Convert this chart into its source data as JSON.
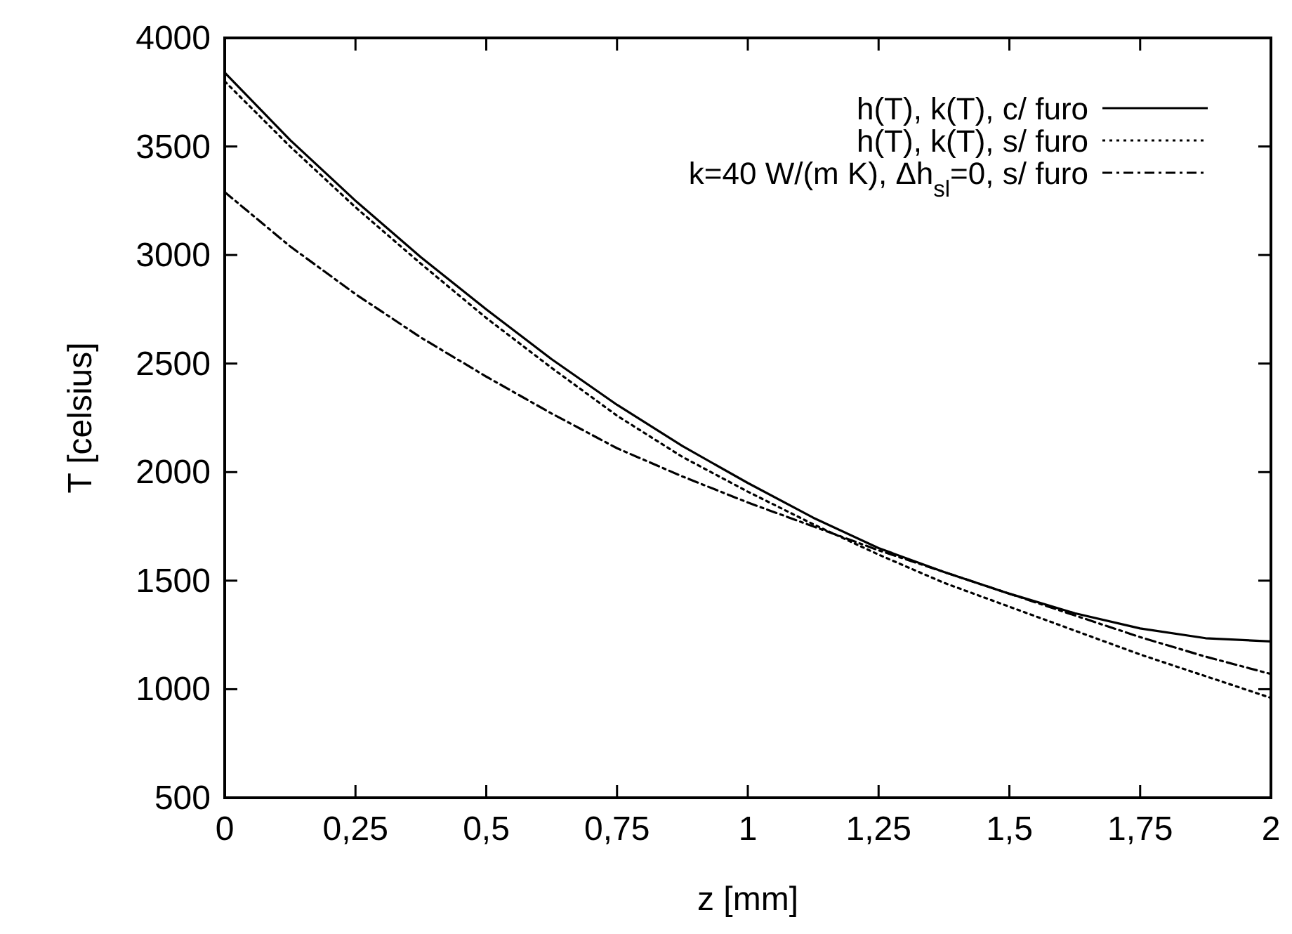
{
  "chart_data": {
    "type": "line",
    "xlabel": "z [mm]",
    "ylabel": "T [celsius]",
    "x": [
      0,
      0.125,
      0.25,
      0.375,
      0.5,
      0.625,
      0.75,
      0.875,
      1,
      1.125,
      1.25,
      1.375,
      1.5,
      1.625,
      1.75,
      1.875,
      2
    ],
    "series": [
      {
        "name": "h(T), k(T), c/ furo",
        "color": "#000000",
        "line_style": "solid",
        "values": [
          3840,
          3530,
          3250,
          2990,
          2750,
          2520,
          2310,
          2120,
          1950,
          1790,
          1650,
          1540,
          1440,
          1350,
          1280,
          1235,
          1220
        ]
      },
      {
        "name": "h(T), k(T), s/ furo",
        "color": "#000000",
        "line_style": "dotted",
        "values": [
          3800,
          3500,
          3220,
          2960,
          2710,
          2480,
          2260,
          2070,
          1910,
          1760,
          1620,
          1490,
          1380,
          1270,
          1160,
          1060,
          960
        ]
      },
      {
        "name": "k=40 W/(m K), Δh$_{sl}$=0, s/ furo",
        "color": "#000000",
        "line_style": "dashdot",
        "values": [
          3290,
          3040,
          2820,
          2620,
          2440,
          2270,
          2110,
          1980,
          1860,
          1750,
          1640,
          1540,
          1440,
          1340,
          1240,
          1150,
          1070
        ]
      }
    ],
    "xlim": [
      0,
      2
    ],
    "ylim": [
      500,
      4000
    ],
    "xticks": [
      0,
      {
        "value": 0.25,
        "label": "0,25"
      },
      {
        "value": 0.5,
        "label": "0,5"
      },
      {
        "value": 0.75,
        "label": "0,75"
      },
      1,
      {
        "value": 1.25,
        "label": "1,25"
      },
      {
        "value": 1.5,
        "label": "1,5"
      },
      {
        "value": 1.75,
        "label": "1,75"
      },
      2
    ],
    "yticks": [
      500,
      1000,
      1500,
      2000,
      2500,
      3000,
      3500,
      4000
    ],
    "legend": "top right",
    "grid": false
  }
}
